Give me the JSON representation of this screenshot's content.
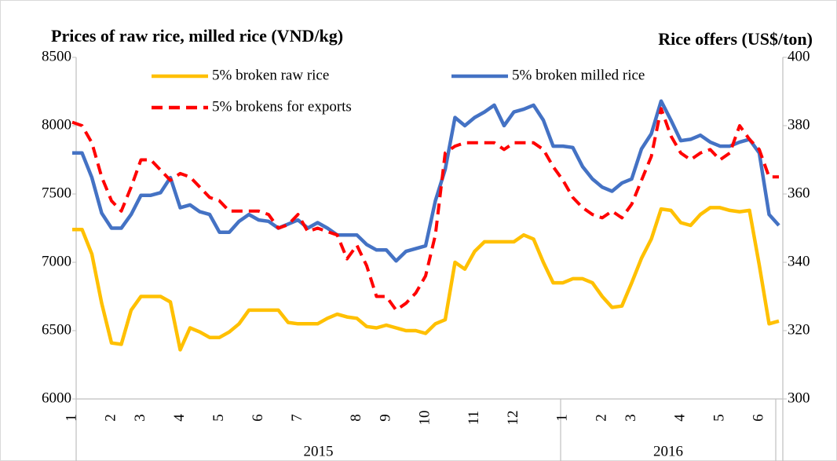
{
  "chart_data": {
    "type": "line",
    "title": "Prices of raw rice, milled rice (VND/kg)",
    "y2_title": "Rice offers (US$/ton)",
    "categories": [
      "1",
      null,
      null,
      null,
      "2",
      null,
      null,
      "3",
      null,
      null,
      null,
      "4",
      null,
      null,
      null,
      "5",
      null,
      null,
      null,
      "6",
      null,
      null,
      null,
      "7",
      null,
      null,
      null,
      null,
      null,
      "8",
      null,
      null,
      "9",
      null,
      null,
      null,
      "10",
      null,
      null,
      null,
      null,
      "11",
      null,
      null,
      null,
      "12",
      null,
      null,
      null,
      null,
      "1",
      null,
      null,
      null,
      "2",
      null,
      null,
      "3",
      null,
      null,
      null,
      null,
      "4",
      null,
      null,
      null,
      "5",
      null,
      null,
      null,
      "6",
      null,
      null
    ],
    "year_labels": [
      "2015",
      "2016"
    ],
    "ylim": [
      6000,
      8500
    ],
    "yticks": [
      6000,
      6500,
      7000,
      7500,
      8000,
      8500
    ],
    "y2lim": [
      300,
      400
    ],
    "y2ticks": [
      300,
      320,
      340,
      360,
      380,
      400
    ],
    "legend": "top",
    "series": [
      {
        "name": "5% broken raw rice",
        "color": "#ffc000",
        "dash": false,
        "values": [
          7240,
          7240,
          7060,
          6700,
          6410,
          6400,
          6650,
          6750,
          6750,
          6750,
          6710,
          6360,
          6520,
          6490,
          6450,
          6450,
          6490,
          6550,
          6650,
          6650,
          6650,
          6650,
          6560,
          6550,
          6550,
          6550,
          6590,
          6620,
          6600,
          6590,
          6530,
          6520,
          6540,
          6520,
          6500,
          6500,
          6480,
          6550,
          6580,
          7000,
          6950,
          7080,
          7150,
          7150,
          7150,
          7150,
          7200,
          7170,
          7000,
          6850,
          6850,
          6880,
          6880,
          6850,
          6750,
          6670,
          6680,
          6850,
          7030,
          7170,
          7390,
          7380,
          7290,
          7270,
          7350,
          7400,
          7400,
          7380,
          7370,
          7380,
          6980,
          6550,
          6570
        ]
      },
      {
        "name": "5% broken milled rice",
        "color": "#4472c4",
        "dash": false,
        "values": [
          7800,
          7800,
          7620,
          7360,
          7250,
          7250,
          7350,
          7490,
          7490,
          7510,
          7620,
          7400,
          7420,
          7370,
          7350,
          7220,
          7220,
          7300,
          7350,
          7310,
          7300,
          7250,
          7280,
          7310,
          7250,
          7290,
          7250,
          7200,
          7200,
          7200,
          7130,
          7090,
          7090,
          7010,
          7080,
          7100,
          7120,
          7450,
          7680,
          8060,
          8000,
          8060,
          8100,
          8150,
          8000,
          8100,
          8120,
          8150,
          8040,
          7850,
          7850,
          7840,
          7700,
          7610,
          7550,
          7520,
          7580,
          7610,
          7830,
          7940,
          8180,
          8040,
          7890,
          7900,
          7930,
          7880,
          7850,
          7850,
          7880,
          7900,
          7800,
          7350,
          7270
        ]
      },
      {
        "name": "5% brokens for exports",
        "color": "#ff0000",
        "dash": true,
        "axis": "y2",
        "values": [
          381,
          380,
          375,
          365,
          358,
          355,
          362,
          370,
          370,
          367,
          364,
          366,
          365,
          362,
          359,
          358,
          355,
          355,
          355,
          355,
          354,
          350,
          351,
          354,
          349,
          350,
          349,
          348,
          341,
          345,
          339,
          330,
          330,
          326,
          328,
          331,
          336,
          348,
          372,
          374,
          375,
          375,
          375,
          375,
          373,
          375,
          375,
          375,
          373,
          368,
          364,
          359,
          356,
          354,
          353,
          355,
          353,
          357,
          364,
          371,
          385,
          377,
          372,
          370,
          372,
          373,
          370,
          372,
          380,
          376,
          373,
          365,
          365
        ]
      }
    ]
  }
}
